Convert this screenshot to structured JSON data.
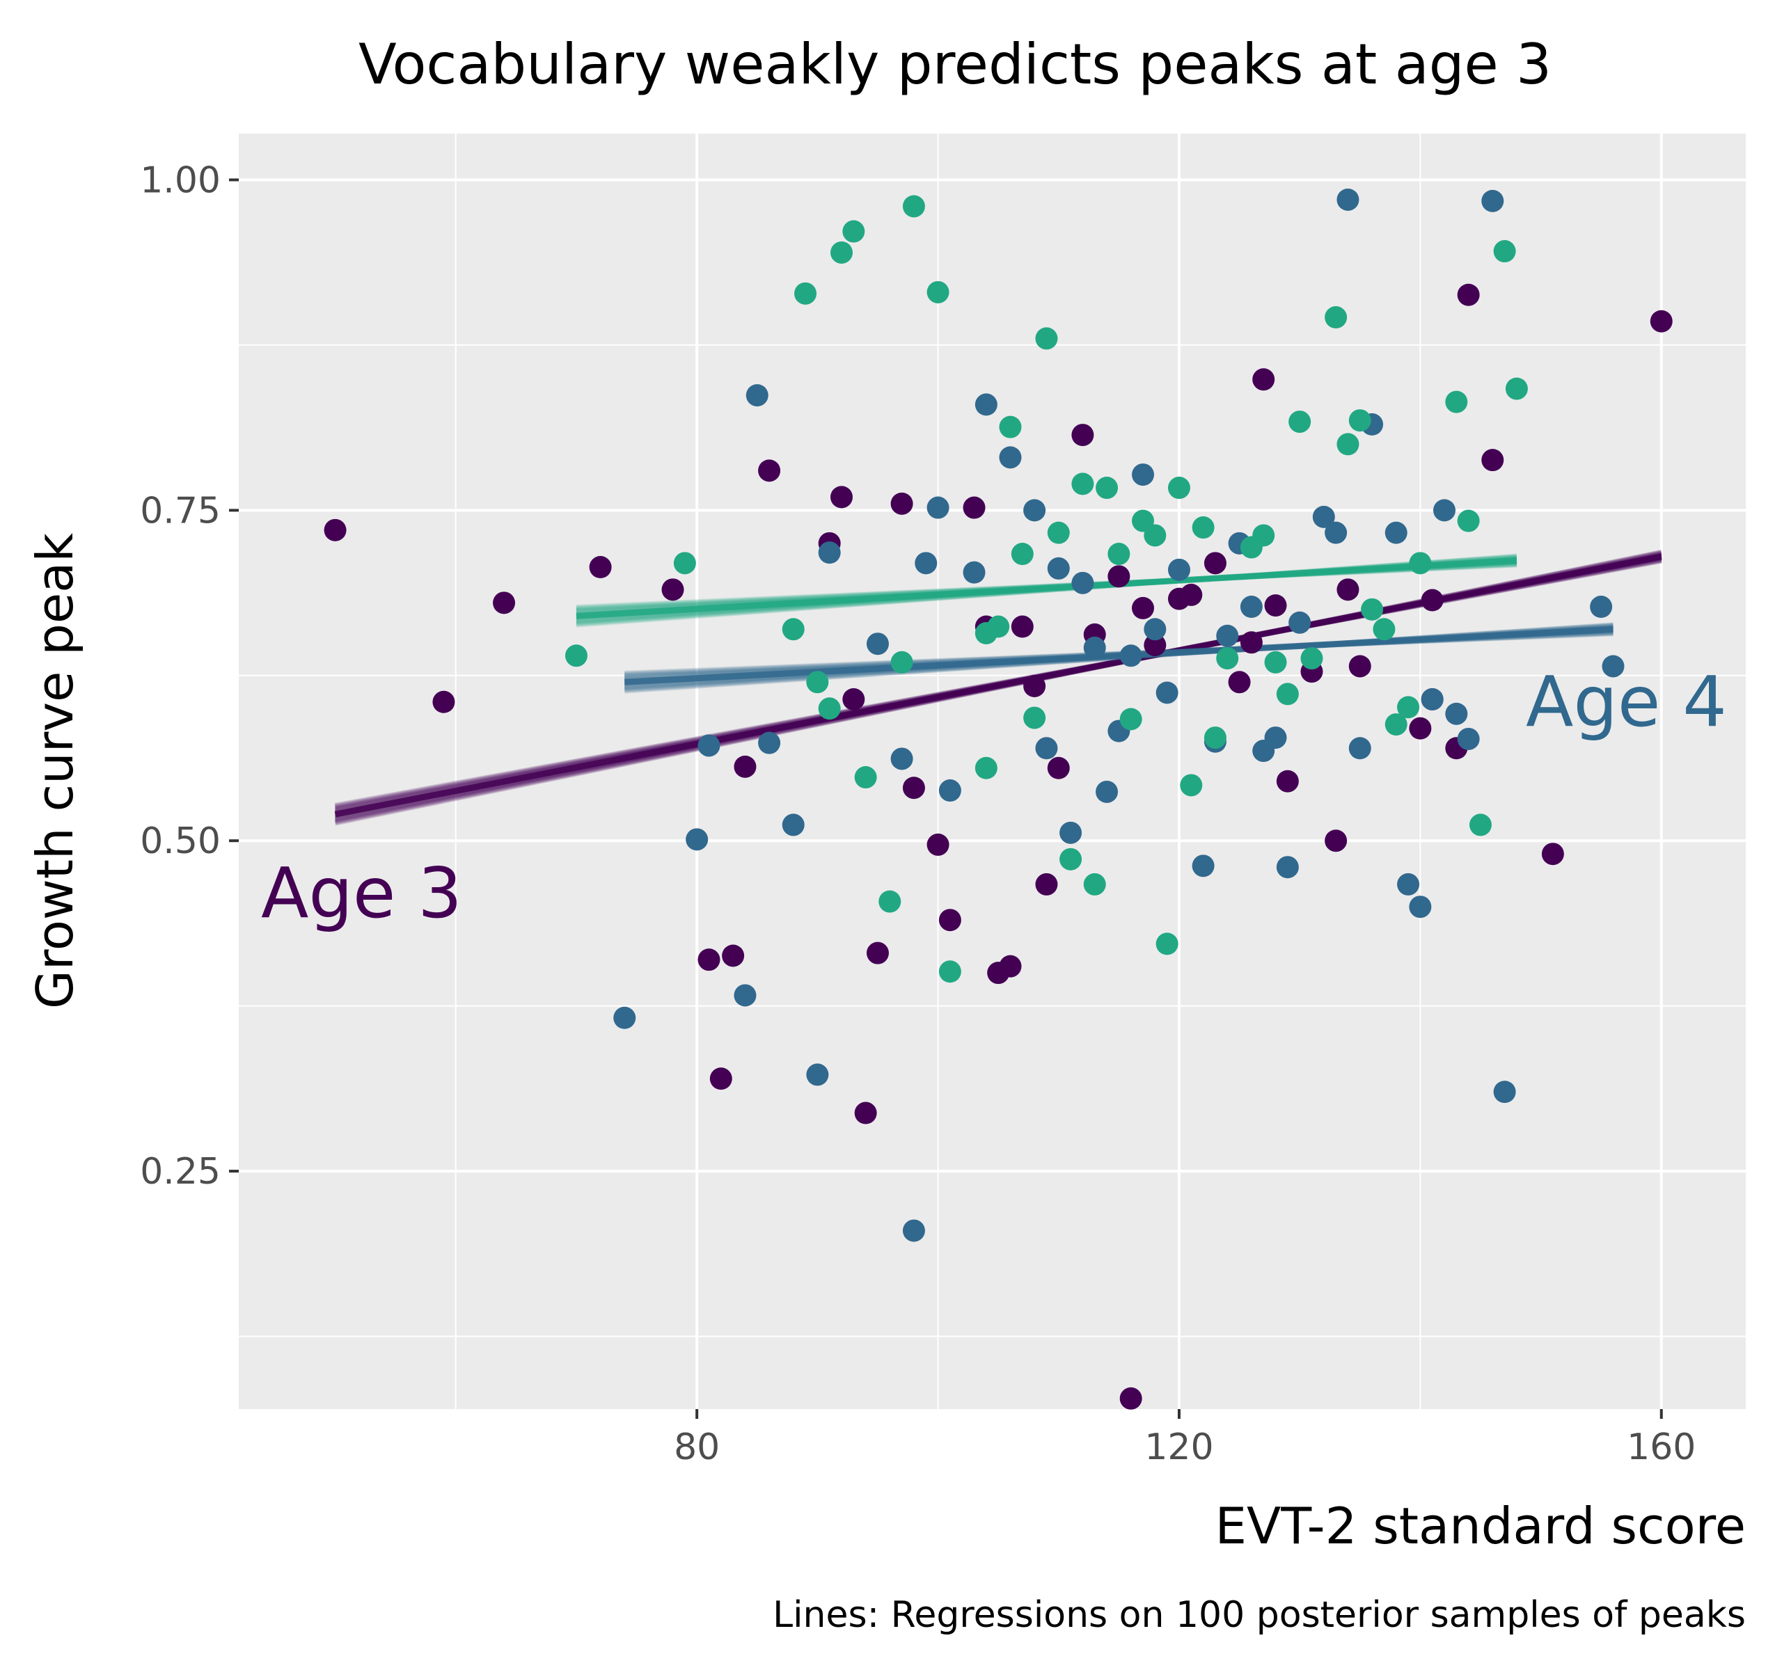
{
  "chart_data": {
    "type": "scatter",
    "title": "Vocabulary weakly predicts peaks at age 3",
    "xlabel": "EVT-2 standard score",
    "ylabel": "Growth curve peak",
    "caption": "Lines: Regressions on 100 posterior samples of peaks",
    "xlim": [
      42,
      167
    ],
    "ylim": [
      0.07,
      1.035
    ],
    "x_ticks": [
      80,
      120,
      160
    ],
    "x_tick_labels": [
      "80",
      "120",
      "160"
    ],
    "y_ticks": [
      0.25,
      0.5,
      0.75,
      1.0
    ],
    "y_tick_labels": [
      "0.25",
      "0.50",
      "0.75",
      "1.00"
    ],
    "grid": true,
    "legend": "none",
    "annotations": [
      {
        "text": "Age 3",
        "x": 42,
        "y": 0.45,
        "color": "#440154"
      },
      {
        "text": "Age 4",
        "x": 147,
        "y": 0.59,
        "color": "#31688e"
      }
    ],
    "series": [
      {
        "name": "Age 3",
        "color": "#440154",
        "fit": {
          "x": [
            50,
            160
          ],
          "y": [
            0.52,
            0.715
          ]
        },
        "points": [
          {
            "x": 50,
            "y": 0.735
          },
          {
            "x": 59,
            "y": 0.605
          },
          {
            "x": 64,
            "y": 0.68
          },
          {
            "x": 72,
            "y": 0.707
          },
          {
            "x": 78,
            "y": 0.69
          },
          {
            "x": 81,
            "y": 0.41
          },
          {
            "x": 82,
            "y": 0.32
          },
          {
            "x": 83,
            "y": 0.413
          },
          {
            "x": 84,
            "y": 0.556
          },
          {
            "x": 86,
            "y": 0.78
          },
          {
            "x": 91,
            "y": 0.725
          },
          {
            "x": 92,
            "y": 0.76
          },
          {
            "x": 93,
            "y": 0.607
          },
          {
            "x": 94,
            "y": 0.294
          },
          {
            "x": 95,
            "y": 0.415
          },
          {
            "x": 97,
            "y": 0.755
          },
          {
            "x": 98,
            "y": 0.54
          },
          {
            "x": 100,
            "y": 0.497
          },
          {
            "x": 101,
            "y": 0.44
          },
          {
            "x": 103,
            "y": 0.752
          },
          {
            "x": 104,
            "y": 0.662
          },
          {
            "x": 105,
            "y": 0.4
          },
          {
            "x": 106,
            "y": 0.405
          },
          {
            "x": 107,
            "y": 0.662
          },
          {
            "x": 108,
            "y": 0.617
          },
          {
            "x": 109,
            "y": 0.467
          },
          {
            "x": 110,
            "y": 0.555
          },
          {
            "x": 112,
            "y": 0.807
          },
          {
            "x": 113,
            "y": 0.656
          },
          {
            "x": 115,
            "y": 0.7
          },
          {
            "x": 116,
            "y": 0.078
          },
          {
            "x": 117,
            "y": 0.676
          },
          {
            "x": 118,
            "y": 0.648
          },
          {
            "x": 120,
            "y": 0.683
          },
          {
            "x": 121,
            "y": 0.686
          },
          {
            "x": 123,
            "y": 0.71
          },
          {
            "x": 125,
            "y": 0.62
          },
          {
            "x": 126,
            "y": 0.65
          },
          {
            "x": 127,
            "y": 0.849
          },
          {
            "x": 128,
            "y": 0.678
          },
          {
            "x": 129,
            "y": 0.545
          },
          {
            "x": 131,
            "y": 0.628
          },
          {
            "x": 133,
            "y": 0.5
          },
          {
            "x": 134,
            "y": 0.69
          },
          {
            "x": 135,
            "y": 0.632
          },
          {
            "x": 140,
            "y": 0.585
          },
          {
            "x": 141,
            "y": 0.682
          },
          {
            "x": 141,
            "y": 0.607
          },
          {
            "x": 143,
            "y": 0.57
          },
          {
            "x": 144,
            "y": 0.913
          },
          {
            "x": 146,
            "y": 0.788
          },
          {
            "x": 151,
            "y": 0.49
          },
          {
            "x": 160,
            "y": 0.893
          }
        ]
      },
      {
        "name": "Age 4",
        "color": "#31688e",
        "fit": {
          "x": [
            74,
            156
          ],
          "y": [
            0.62,
            0.66
          ]
        },
        "points": [
          {
            "x": 74,
            "y": 0.366
          },
          {
            "x": 80,
            "y": 0.501
          },
          {
            "x": 81,
            "y": 0.572
          },
          {
            "x": 84,
            "y": 0.383
          },
          {
            "x": 85,
            "y": 0.837
          },
          {
            "x": 86,
            "y": 0.574
          },
          {
            "x": 88,
            "y": 0.512
          },
          {
            "x": 90,
            "y": 0.323
          },
          {
            "x": 91,
            "y": 0.718
          },
          {
            "x": 95,
            "y": 0.649
          },
          {
            "x": 97,
            "y": 0.562
          },
          {
            "x": 98,
            "y": 0.205
          },
          {
            "x": 99,
            "y": 0.71
          },
          {
            "x": 100,
            "y": 0.752
          },
          {
            "x": 101,
            "y": 0.538
          },
          {
            "x": 103,
            "y": 0.703
          },
          {
            "x": 104,
            "y": 0.83
          },
          {
            "x": 106,
            "y": 0.79
          },
          {
            "x": 108,
            "y": 0.75
          },
          {
            "x": 109,
            "y": 0.57
          },
          {
            "x": 110,
            "y": 0.706
          },
          {
            "x": 111,
            "y": 0.506
          },
          {
            "x": 112,
            "y": 0.695
          },
          {
            "x": 113,
            "y": 0.646
          },
          {
            "x": 114,
            "y": 0.537
          },
          {
            "x": 115,
            "y": 0.583
          },
          {
            "x": 116,
            "y": 0.64
          },
          {
            "x": 117,
            "y": 0.777
          },
          {
            "x": 118,
            "y": 0.66
          },
          {
            "x": 119,
            "y": 0.612
          },
          {
            "x": 120,
            "y": 0.705
          },
          {
            "x": 122,
            "y": 0.481
          },
          {
            "x": 123,
            "y": 0.575
          },
          {
            "x": 124,
            "y": 0.655
          },
          {
            "x": 125,
            "y": 0.725
          },
          {
            "x": 126,
            "y": 0.677
          },
          {
            "x": 127,
            "y": 0.568
          },
          {
            "x": 128,
            "y": 0.578
          },
          {
            "x": 129,
            "y": 0.48
          },
          {
            "x": 130,
            "y": 0.665
          },
          {
            "x": 132,
            "y": 0.745
          },
          {
            "x": 133,
            "y": 0.733
          },
          {
            "x": 134,
            "y": 0.985
          },
          {
            "x": 135,
            "y": 0.57
          },
          {
            "x": 136,
            "y": 0.815
          },
          {
            "x": 138,
            "y": 0.733
          },
          {
            "x": 139,
            "y": 0.467
          },
          {
            "x": 140,
            "y": 0.45
          },
          {
            "x": 141,
            "y": 0.607
          },
          {
            "x": 142,
            "y": 0.75
          },
          {
            "x": 143,
            "y": 0.596
          },
          {
            "x": 144,
            "y": 0.577
          },
          {
            "x": 146,
            "y": 0.984
          },
          {
            "x": 147,
            "y": 0.31
          },
          {
            "x": 155,
            "y": 0.677
          },
          {
            "x": 156,
            "y": 0.632
          }
        ]
      },
      {
        "name": "",
        "color": "#21a883",
        "fit": {
          "x": [
            70,
            148
          ],
          "y": [
            0.67,
            0.712
          ]
        },
        "points": [
          {
            "x": 70,
            "y": 0.64
          },
          {
            "x": 79,
            "y": 0.71
          },
          {
            "x": 88,
            "y": 0.66
          },
          {
            "x": 89,
            "y": 0.914
          },
          {
            "x": 90,
            "y": 0.62
          },
          {
            "x": 91,
            "y": 0.6
          },
          {
            "x": 92,
            "y": 0.945
          },
          {
            "x": 93,
            "y": 0.961
          },
          {
            "x": 94,
            "y": 0.548
          },
          {
            "x": 96,
            "y": 0.454
          },
          {
            "x": 97,
            "y": 0.635
          },
          {
            "x": 98,
            "y": 0.98
          },
          {
            "x": 100,
            "y": 0.915
          },
          {
            "x": 101,
            "y": 0.401
          },
          {
            "x": 104,
            "y": 0.657
          },
          {
            "x": 104,
            "y": 0.555
          },
          {
            "x": 105,
            "y": 0.662
          },
          {
            "x": 106,
            "y": 0.813
          },
          {
            "x": 107,
            "y": 0.717
          },
          {
            "x": 108,
            "y": 0.593
          },
          {
            "x": 109,
            "y": 0.88
          },
          {
            "x": 110,
            "y": 0.733
          },
          {
            "x": 111,
            "y": 0.486
          },
          {
            "x": 112,
            "y": 0.77
          },
          {
            "x": 113,
            "y": 0.467
          },
          {
            "x": 114,
            "y": 0.767
          },
          {
            "x": 115,
            "y": 0.717
          },
          {
            "x": 116,
            "y": 0.592
          },
          {
            "x": 117,
            "y": 0.742
          },
          {
            "x": 118,
            "y": 0.731
          },
          {
            "x": 119,
            "y": 0.422
          },
          {
            "x": 120,
            "y": 0.767
          },
          {
            "x": 121,
            "y": 0.542
          },
          {
            "x": 122,
            "y": 0.737
          },
          {
            "x": 123,
            "y": 0.578
          },
          {
            "x": 124,
            "y": 0.638
          },
          {
            "x": 126,
            "y": 0.722
          },
          {
            "x": 127,
            "y": 0.731
          },
          {
            "x": 128,
            "y": 0.635
          },
          {
            "x": 129,
            "y": 0.611
          },
          {
            "x": 130,
            "y": 0.817
          },
          {
            "x": 131,
            "y": 0.638
          },
          {
            "x": 133,
            "y": 0.896
          },
          {
            "x": 134,
            "y": 0.8
          },
          {
            "x": 135,
            "y": 0.818
          },
          {
            "x": 136,
            "y": 0.675
          },
          {
            "x": 137,
            "y": 0.66
          },
          {
            "x": 138,
            "y": 0.588
          },
          {
            "x": 139,
            "y": 0.601
          },
          {
            "x": 140,
            "y": 0.71
          },
          {
            "x": 143,
            "y": 0.832
          },
          {
            "x": 144,
            "y": 0.742
          },
          {
            "x": 145,
            "y": 0.512
          },
          {
            "x": 147,
            "y": 0.946
          },
          {
            "x": 148,
            "y": 0.842
          }
        ]
      }
    ]
  }
}
